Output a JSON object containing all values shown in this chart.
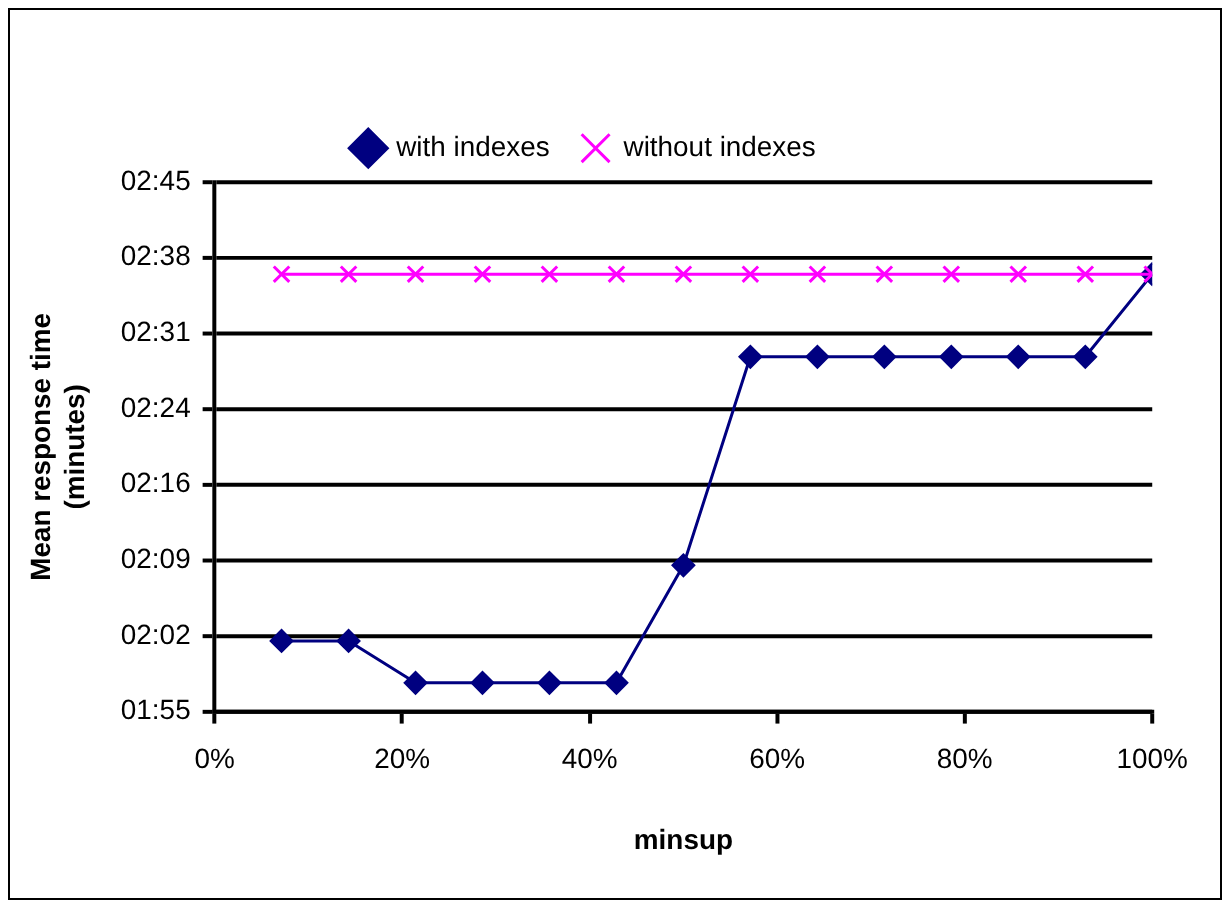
{
  "chart_data": {
    "type": "line",
    "xlabel": "minsup",
    "ylabel": "Mean response time (minutes)",
    "series": [
      {
        "name": "with indexes",
        "color": "#000080",
        "marker": "diamond",
        "x": [
          7.14,
          14.29,
          21.43,
          28.57,
          35.71,
          42.86,
          50,
          57.14,
          64.29,
          71.43,
          78.57,
          85.71,
          92.86,
          100
        ],
        "values": [
          2.028,
          2.028,
          1.962,
          1.962,
          1.962,
          1.962,
          2.147,
          2.475,
          2.475,
          2.475,
          2.475,
          2.475,
          2.475,
          2.605
        ]
      },
      {
        "name": "without indexes",
        "color": "#ff00ff",
        "marker": "cross",
        "x": [
          7.14,
          14.29,
          21.43,
          28.57,
          35.71,
          42.86,
          50,
          57.14,
          64.29,
          71.43,
          78.57,
          85.71,
          92.86,
          100
        ],
        "values": [
          2.605,
          2.605,
          2.605,
          2.605,
          2.605,
          2.605,
          2.605,
          2.605,
          2.605,
          2.605,
          2.605,
          2.605,
          2.605,
          2.605
        ]
      }
    ],
    "xlim": [
      0,
      100
    ],
    "xticks": [
      {
        "value": 0,
        "label": "0%"
      },
      {
        "value": 20,
        "label": "20%"
      },
      {
        "value": 40,
        "label": "40%"
      },
      {
        "value": 60,
        "label": "60%"
      },
      {
        "value": 80,
        "label": "80%"
      },
      {
        "value": 100,
        "label": "100%"
      }
    ],
    "ylim": [
      1.9167,
      2.75
    ],
    "yticks": [
      {
        "value": 1.9167,
        "label": "01:55"
      },
      {
        "value": 2.0357,
        "label": "02:02"
      },
      {
        "value": 2.1548,
        "label": "02:09"
      },
      {
        "value": 2.2738,
        "label": "02:16"
      },
      {
        "value": 2.3929,
        "label": "02:24"
      },
      {
        "value": 2.5119,
        "label": "02:31"
      },
      {
        "value": 2.631,
        "label": "02:38"
      },
      {
        "value": 2.75,
        "label": "02:45"
      }
    ],
    "grid": "y",
    "legend": "top",
    "line_style": "solid"
  }
}
